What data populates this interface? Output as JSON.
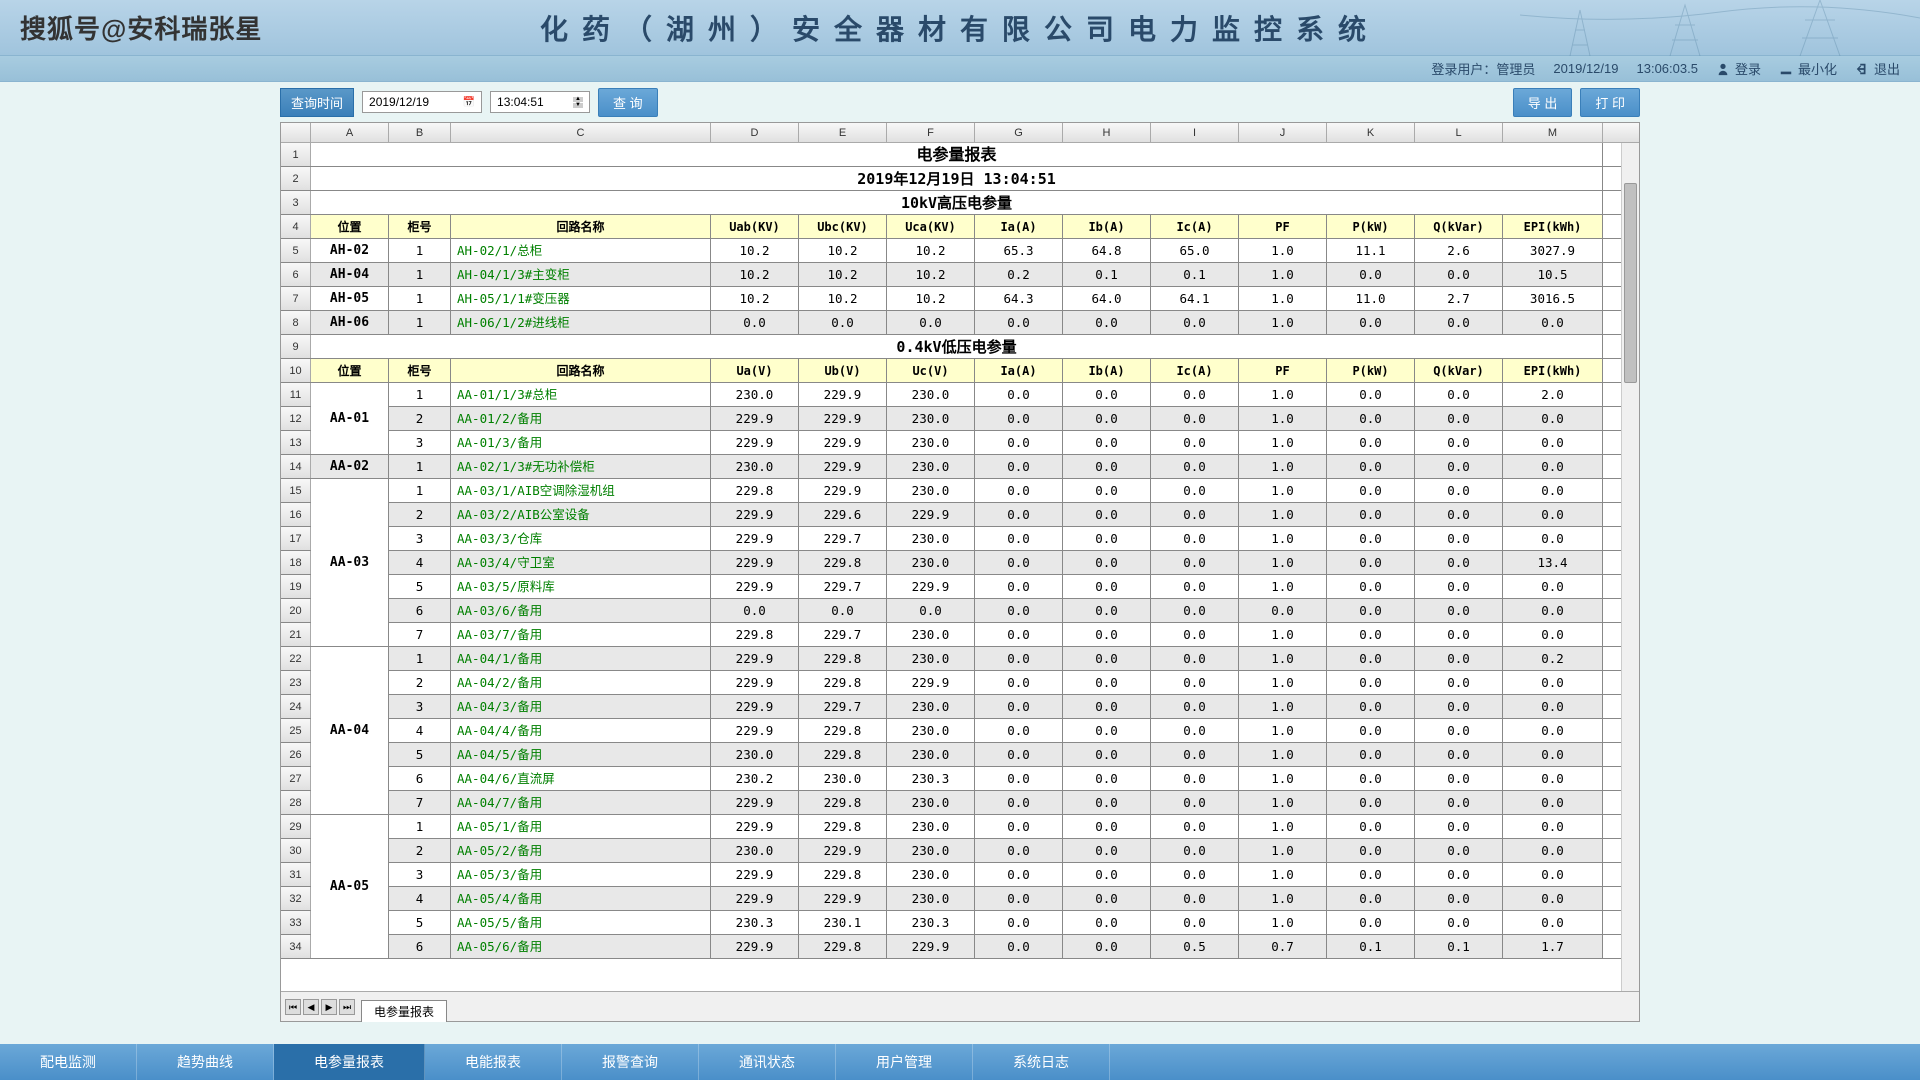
{
  "watermark": "搜狐号@安科瑞张星",
  "systemTitle": "化药（湖州）安全器材有限公司电力监控系统",
  "userbar": {
    "loginUserLabel": "登录用户：",
    "loginUser": "管理员",
    "date": "2019/12/19",
    "time": "13:06:03.5",
    "login": "登录",
    "minimize": "最小化",
    "exit": "退出"
  },
  "toolbar": {
    "queryTimeLabel": "查询时间",
    "date": "2019/12/19",
    "time": "13:04:51",
    "queryBtn": "查 询",
    "exportBtn": "导 出",
    "printBtn": "打 印"
  },
  "columns": {
    "letters": [
      "A",
      "B",
      "C",
      "D",
      "E",
      "F",
      "G",
      "H",
      "I",
      "J",
      "K",
      "L",
      "M"
    ],
    "widths": [
      78,
      62,
      260,
      88,
      88,
      88,
      88,
      88,
      88,
      88,
      88,
      88,
      100
    ]
  },
  "report": {
    "title": "电参量报表",
    "timestamp": "2019年12月19日 13:04:51",
    "section1": {
      "title": "10kV高压电参量",
      "headers": [
        "位置",
        "柜号",
        "回路名称",
        "Uab(KV)",
        "Ubc(KV)",
        "Uca(KV)",
        "Ia(A)",
        "Ib(A)",
        "Ic(A)",
        "PF",
        "P(kW)",
        "Q(kVar)",
        "EPI(kWh)"
      ],
      "rows": [
        {
          "loc": "AH-02",
          "num": "1",
          "name": "AH-02/1/总柜",
          "v": [
            "10.2",
            "10.2",
            "10.2",
            "65.3",
            "64.8",
            "65.0",
            "1.0",
            "11.1",
            "2.6",
            "3027.9"
          ]
        },
        {
          "loc": "AH-04",
          "num": "1",
          "name": "AH-04/1/3#主变柜",
          "v": [
            "10.2",
            "10.2",
            "10.2",
            "0.2",
            "0.1",
            "0.1",
            "1.0",
            "0.0",
            "0.0",
            "10.5"
          ]
        },
        {
          "loc": "AH-05",
          "num": "1",
          "name": "AH-05/1/1#变压器",
          "v": [
            "10.2",
            "10.2",
            "10.2",
            "64.3",
            "64.0",
            "64.1",
            "1.0",
            "11.0",
            "2.7",
            "3016.5"
          ]
        },
        {
          "loc": "AH-06",
          "num": "1",
          "name": "AH-06/1/2#进线柜",
          "v": [
            "0.0",
            "0.0",
            "0.0",
            "0.0",
            "0.0",
            "0.0",
            "1.0",
            "0.0",
            "0.0",
            "0.0"
          ]
        }
      ]
    },
    "section2": {
      "title": "0.4kV低压电参量",
      "headers": [
        "位置",
        "柜号",
        "回路名称",
        "Ua(V)",
        "Ub(V)",
        "Uc(V)",
        "Ia(A)",
        "Ib(A)",
        "Ic(A)",
        "PF",
        "P(kW)",
        "Q(kVar)",
        "EPI(kWh)"
      ],
      "groups": [
        {
          "loc": "AA-01",
          "start": 11,
          "rows": [
            {
              "num": "1",
              "name": "AA-01/1/3#总柜",
              "v": [
                "230.0",
                "229.9",
                "230.0",
                "0.0",
                "0.0",
                "0.0",
                "1.0",
                "0.0",
                "0.0",
                "2.0"
              ]
            },
            {
              "num": "2",
              "name": "AA-01/2/备用",
              "v": [
                "229.9",
                "229.9",
                "230.0",
                "0.0",
                "0.0",
                "0.0",
                "1.0",
                "0.0",
                "0.0",
                "0.0"
              ]
            },
            {
              "num": "3",
              "name": "AA-01/3/备用",
              "v": [
                "229.9",
                "229.9",
                "230.0",
                "0.0",
                "0.0",
                "0.0",
                "1.0",
                "0.0",
                "0.0",
                "0.0"
              ]
            }
          ]
        },
        {
          "loc": "AA-02",
          "start": 14,
          "rows": [
            {
              "num": "1",
              "name": "AA-02/1/3#无功补偿柜",
              "v": [
                "230.0",
                "229.9",
                "230.0",
                "0.0",
                "0.0",
                "0.0",
                "1.0",
                "0.0",
                "0.0",
                "0.0"
              ]
            }
          ]
        },
        {
          "loc": "AA-03",
          "start": 15,
          "rows": [
            {
              "num": "1",
              "name": "AA-03/1/AIB空调除湿机组",
              "v": [
                "229.8",
                "229.9",
                "230.0",
                "0.0",
                "0.0",
                "0.0",
                "1.0",
                "0.0",
                "0.0",
                "0.0"
              ]
            },
            {
              "num": "2",
              "name": "AA-03/2/AIB公室设备",
              "v": [
                "229.9",
                "229.6",
                "229.9",
                "0.0",
                "0.0",
                "0.0",
                "1.0",
                "0.0",
                "0.0",
                "0.0"
              ]
            },
            {
              "num": "3",
              "name": "AA-03/3/仓库",
              "v": [
                "229.9",
                "229.7",
                "230.0",
                "0.0",
                "0.0",
                "0.0",
                "1.0",
                "0.0",
                "0.0",
                "0.0"
              ]
            },
            {
              "num": "4",
              "name": "AA-03/4/守卫室",
              "v": [
                "229.9",
                "229.8",
                "230.0",
                "0.0",
                "0.0",
                "0.0",
                "1.0",
                "0.0",
                "0.0",
                "13.4"
              ]
            },
            {
              "num": "5",
              "name": "AA-03/5/原料库",
              "v": [
                "229.9",
                "229.7",
                "229.9",
                "0.0",
                "0.0",
                "0.0",
                "1.0",
                "0.0",
                "0.0",
                "0.0"
              ]
            },
            {
              "num": "6",
              "name": "AA-03/6/备用",
              "v": [
                "0.0",
                "0.0",
                "0.0",
                "0.0",
                "0.0",
                "0.0",
                "0.0",
                "0.0",
                "0.0",
                "0.0"
              ]
            },
            {
              "num": "7",
              "name": "AA-03/7/备用",
              "v": [
                "229.8",
                "229.7",
                "230.0",
                "0.0",
                "0.0",
                "0.0",
                "1.0",
                "0.0",
                "0.0",
                "0.0"
              ]
            }
          ]
        },
        {
          "loc": "AA-04",
          "start": 22,
          "rows": [
            {
              "num": "1",
              "name": "AA-04/1/备用",
              "v": [
                "229.9",
                "229.8",
                "230.0",
                "0.0",
                "0.0",
                "0.0",
                "1.0",
                "0.0",
                "0.0",
                "0.2"
              ]
            },
            {
              "num": "2",
              "name": "AA-04/2/备用",
              "v": [
                "229.9",
                "229.8",
                "229.9",
                "0.0",
                "0.0",
                "0.0",
                "1.0",
                "0.0",
                "0.0",
                "0.0"
              ]
            },
            {
              "num": "3",
              "name": "AA-04/3/备用",
              "v": [
                "229.9",
                "229.7",
                "230.0",
                "0.0",
                "0.0",
                "0.0",
                "1.0",
                "0.0",
                "0.0",
                "0.0"
              ]
            },
            {
              "num": "4",
              "name": "AA-04/4/备用",
              "v": [
                "229.9",
                "229.8",
                "230.0",
                "0.0",
                "0.0",
                "0.0",
                "1.0",
                "0.0",
                "0.0",
                "0.0"
              ]
            },
            {
              "num": "5",
              "name": "AA-04/5/备用",
              "v": [
                "230.0",
                "229.8",
                "230.0",
                "0.0",
                "0.0",
                "0.0",
                "1.0",
                "0.0",
                "0.0",
                "0.0"
              ]
            },
            {
              "num": "6",
              "name": "AA-04/6/直流屏",
              "v": [
                "230.2",
                "230.0",
                "230.3",
                "0.0",
                "0.0",
                "0.0",
                "1.0",
                "0.0",
                "0.0",
                "0.0"
              ]
            },
            {
              "num": "7",
              "name": "AA-04/7/备用",
              "v": [
                "229.9",
                "229.8",
                "230.0",
                "0.0",
                "0.0",
                "0.0",
                "1.0",
                "0.0",
                "0.0",
                "0.0"
              ]
            }
          ]
        },
        {
          "loc": "AA-05",
          "start": 29,
          "rows": [
            {
              "num": "1",
              "name": "AA-05/1/备用",
              "v": [
                "229.9",
                "229.8",
                "230.0",
                "0.0",
                "0.0",
                "0.0",
                "1.0",
                "0.0",
                "0.0",
                "0.0"
              ]
            },
            {
              "num": "2",
              "name": "AA-05/2/备用",
              "v": [
                "230.0",
                "229.9",
                "230.0",
                "0.0",
                "0.0",
                "0.0",
                "1.0",
                "0.0",
                "0.0",
                "0.0"
              ]
            },
            {
              "num": "3",
              "name": "AA-05/3/备用",
              "v": [
                "229.9",
                "229.8",
                "230.0",
                "0.0",
                "0.0",
                "0.0",
                "1.0",
                "0.0",
                "0.0",
                "0.0"
              ]
            },
            {
              "num": "4",
              "name": "AA-05/4/备用",
              "v": [
                "229.9",
                "229.9",
                "230.0",
                "0.0",
                "0.0",
                "0.0",
                "1.0",
                "0.0",
                "0.0",
                "0.0"
              ]
            },
            {
              "num": "5",
              "name": "AA-05/5/备用",
              "v": [
                "230.3",
                "230.1",
                "230.3",
                "0.0",
                "0.0",
                "0.0",
                "1.0",
                "0.0",
                "0.0",
                "0.0"
              ]
            },
            {
              "num": "6",
              "name": "AA-05/6/备用",
              "v": [
                "229.9",
                "229.8",
                "229.9",
                "0.0",
                "0.0",
                "0.5",
                "0.7",
                "0.1",
                "0.1",
                "1.7"
              ]
            }
          ]
        }
      ]
    }
  },
  "sheetTab": "电参量报表",
  "bottomNav": [
    "配电监测",
    "趋势曲线",
    "电参量报表",
    "电能报表",
    "报警查询",
    "通讯状态",
    "用户管理",
    "系统日志"
  ],
  "activeNav": 2
}
